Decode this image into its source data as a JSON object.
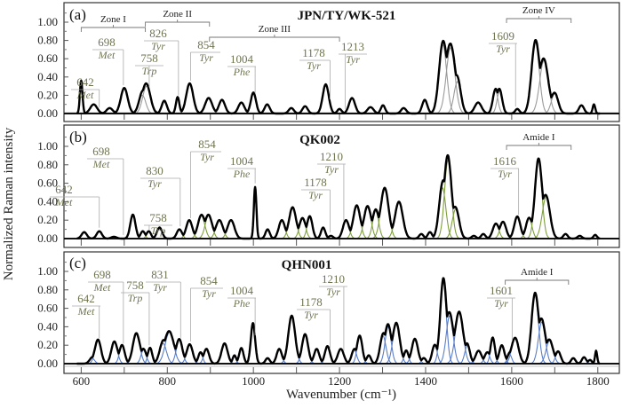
{
  "figure": {
    "xlabel": "Wavenumber (cm⁻¹)",
    "ylabel": "Normalized Raman intensity"
  },
  "chart_data": [
    {
      "type": "line",
      "panel": "(a)",
      "title": "JPN/TY/WK-521",
      "xlim": [
        560,
        1850
      ],
      "ylim": [
        0,
        1.1
      ],
      "xticks": [
        600,
        800,
        1000,
        1200,
        1400,
        1600,
        1800
      ],
      "yticks": [
        "0.00",
        "0.20",
        "0.40",
        "0.60",
        "0.80",
        "1.00"
      ],
      "component_color": "#9a9a9a",
      "peaks": [
        [
          600,
          0.36,
          3
        ],
        [
          629,
          0.1,
          8
        ],
        [
          666,
          0.06,
          7
        ],
        [
          700,
          0.28,
          8
        ],
        [
          742,
          0.2,
          8
        ],
        [
          752,
          0.3,
          9
        ],
        [
          793,
          0.14,
          6
        ],
        [
          824,
          0.18,
          4
        ],
        [
          852,
          0.33,
          8
        ],
        [
          896,
          0.17,
          8
        ],
        [
          927,
          0.15,
          7
        ],
        [
          972,
          0.12,
          7
        ],
        [
          1000,
          0.23,
          6
        ],
        [
          1032,
          0.1,
          6
        ],
        [
          1088,
          0.06,
          6
        ],
        [
          1120,
          0.08,
          6
        ],
        [
          1168,
          0.32,
          7
        ],
        [
          1200,
          0.05,
          5
        ],
        [
          1229,
          0.17,
          7
        ],
        [
          1272,
          0.07,
          7
        ],
        [
          1301,
          0.09,
          5
        ],
        [
          1349,
          0.06,
          6
        ],
        [
          1398,
          0.15,
          6
        ],
        [
          1440,
          0.75,
          9
        ],
        [
          1458,
          0.72,
          10
        ],
        [
          1474,
          0.35,
          8
        ],
        [
          1522,
          0.12,
          8
        ],
        [
          1562,
          0.25,
          6
        ],
        [
          1572,
          0.25,
          6
        ],
        [
          1613,
          0.05,
          5
        ],
        [
          1655,
          0.78,
          9
        ],
        [
          1675,
          0.58,
          10
        ],
        [
          1700,
          0.22,
          8
        ],
        [
          1762,
          0.09,
          6
        ],
        [
          1791,
          0.1,
          3
        ]
      ],
      "annotations": [
        {
          "wn": 642,
          "label": "642",
          "residue": "Met"
        },
        {
          "wn": 698,
          "label": "698",
          "residue": "Met"
        },
        {
          "wn": 758,
          "label": "758",
          "residue": "Trp"
        },
        {
          "wn": 826,
          "label": "826",
          "residue": "Tyr"
        },
        {
          "wn": 854,
          "label": "854",
          "residue": "Tyr"
        },
        {
          "wn": 1004,
          "label": "1004",
          "residue": "Phe"
        },
        {
          "wn": 1178,
          "label": "1178",
          "residue": "Tyr"
        },
        {
          "wn": 1213,
          "label": "1213",
          "residue": "Tyr"
        },
        {
          "wn": 1609,
          "label": "1609",
          "residue": "Tyr"
        }
      ],
      "zones": [
        {
          "label": "Zone I",
          "range": [
            600,
            749
          ]
        },
        {
          "label": "Zone II",
          "range": [
            749,
            898
          ]
        },
        {
          "label": "Zone III",
          "range": [
            898,
            1200
          ]
        },
        {
          "label": "Zone IV",
          "range": [
            1588,
            1738
          ]
        }
      ]
    },
    {
      "type": "line",
      "panel": "(b)",
      "title": "QK002",
      "xlim": [
        560,
        1850
      ],
      "ylim": [
        0,
        1.1
      ],
      "xticks": [
        600,
        800,
        1000,
        1200,
        1400,
        1600,
        1800
      ],
      "yticks": [
        "0.00",
        "0.20",
        "0.40",
        "0.60",
        "0.80",
        "1.00"
      ],
      "component_color": "#7f9f3c",
      "peaks": [
        [
          607,
          0.07,
          6
        ],
        [
          642,
          0.08,
          6
        ],
        [
          676,
          0.02,
          6
        ],
        [
          720,
          0.26,
          6
        ],
        [
          743,
          0.08,
          5
        ],
        [
          757,
          0.08,
          5
        ],
        [
          782,
          0.12,
          6
        ],
        [
          828,
          0.1,
          6
        ],
        [
          851,
          0.2,
          7
        ],
        [
          879,
          0.25,
          8
        ],
        [
          896,
          0.25,
          8
        ],
        [
          921,
          0.2,
          8
        ],
        [
          948,
          0.2,
          8
        ],
        [
          1004,
          0.56,
          3
        ],
        [
          1033,
          0.1,
          5
        ],
        [
          1066,
          0.2,
          7
        ],
        [
          1091,
          0.34,
          8
        ],
        [
          1114,
          0.22,
          7
        ],
        [
          1131,
          0.24,
          6
        ],
        [
          1162,
          0.12,
          5
        ],
        [
          1180,
          0.03,
          5
        ],
        [
          1215,
          0.2,
          7
        ],
        [
          1240,
          0.36,
          8
        ],
        [
          1265,
          0.35,
          8
        ],
        [
          1284,
          0.3,
          7
        ],
        [
          1305,
          0.55,
          9
        ],
        [
          1338,
          0.4,
          9
        ],
        [
          1390,
          0.05,
          5
        ],
        [
          1410,
          0.07,
          5
        ],
        [
          1439,
          0.55,
          8
        ],
        [
          1452,
          0.85,
          8
        ],
        [
          1470,
          0.32,
          8
        ],
        [
          1512,
          0.03,
          5
        ],
        [
          1534,
          0.05,
          5
        ],
        [
          1563,
          0.16,
          7
        ],
        [
          1580,
          0.18,
          7
        ],
        [
          1613,
          0.24,
          7
        ],
        [
          1640,
          0.22,
          7
        ],
        [
          1662,
          0.85,
          8
        ],
        [
          1680,
          0.45,
          9
        ],
        [
          1725,
          0.05,
          5
        ],
        [
          1758,
          0.03,
          5
        ],
        [
          1794,
          0.04,
          4
        ]
      ],
      "annotations": [
        {
          "wn": 642,
          "label": "642",
          "residue": "Met"
        },
        {
          "wn": 698,
          "label": "698",
          "residue": "Met"
        },
        {
          "wn": 830,
          "label": "830",
          "residue": "Tyr"
        },
        {
          "wn": 758,
          "label": "758",
          "residue": "Trp"
        },
        {
          "wn": 854,
          "label": "854",
          "residue": "Tyr"
        },
        {
          "wn": 1004,
          "label": "1004",
          "residue": "Phe"
        },
        {
          "wn": 1210,
          "label": "1210",
          "residue": "Tyr"
        },
        {
          "wn": 1178,
          "label": "1178",
          "residue": "Tyr"
        },
        {
          "wn": 1616,
          "label": "1616",
          "residue": "Tyr"
        }
      ],
      "zones": [
        {
          "label": "Amide I",
          "range": [
            1588,
            1738
          ]
        }
      ]
    },
    {
      "type": "line",
      "panel": "(c)",
      "title": "QHN001",
      "xlim": [
        560,
        1850
      ],
      "ylim": [
        0,
        1.1
      ],
      "xticks": [
        600,
        800,
        1000,
        1200,
        1400,
        1600,
        1800
      ],
      "yticks": [
        "0.00",
        "0.20",
        "0.40",
        "0.60",
        "0.80",
        "1.00"
      ],
      "component_color": "#5a7ec8",
      "peaks": [
        [
          625,
          0.06,
          6
        ],
        [
          639,
          0.26,
          7
        ],
        [
          677,
          0.24,
          7
        ],
        [
          695,
          0.2,
          6
        ],
        [
          728,
          0.33,
          8
        ],
        [
          745,
          0.15,
          6
        ],
        [
          760,
          0.17,
          5
        ],
        [
          790,
          0.22,
          8
        ],
        [
          805,
          0.34,
          10
        ],
        [
          828,
          0.26,
          7
        ],
        [
          852,
          0.21,
          7
        ],
        [
          877,
          0.12,
          5
        ],
        [
          891,
          0.16,
          6
        ],
        [
          933,
          0.22,
          7
        ],
        [
          956,
          0.09,
          4
        ],
        [
          972,
          0.17,
          5
        ],
        [
          999,
          0.44,
          5
        ],
        [
          1033,
          0.06,
          5
        ],
        [
          1060,
          0.16,
          6
        ],
        [
          1089,
          0.52,
          8
        ],
        [
          1120,
          0.32,
          7
        ],
        [
          1147,
          0.16,
          6
        ],
        [
          1172,
          0.19,
          6
        ],
        [
          1203,
          0.16,
          7
        ],
        [
          1234,
          0.15,
          6
        ],
        [
          1247,
          0.3,
          6
        ],
        [
          1268,
          0.09,
          5
        ],
        [
          1301,
          0.3,
          7
        ],
        [
          1313,
          0.4,
          7
        ],
        [
          1332,
          0.44,
          8
        ],
        [
          1355,
          0.14,
          5
        ],
        [
          1375,
          0.27,
          7
        ],
        [
          1396,
          0.06,
          5
        ],
        [
          1421,
          0.2,
          6
        ],
        [
          1441,
          0.9,
          7
        ],
        [
          1456,
          0.52,
          8
        ],
        [
          1478,
          0.56,
          9
        ],
        [
          1497,
          0.2,
          6
        ],
        [
          1523,
          0.14,
          7
        ],
        [
          1543,
          0.12,
          6
        ],
        [
          1556,
          0.28,
          5
        ],
        [
          1577,
          0.2,
          6
        ],
        [
          1595,
          0.1,
          5
        ],
        [
          1608,
          0.28,
          8
        ],
        [
          1654,
          0.75,
          8
        ],
        [
          1670,
          0.45,
          8
        ],
        [
          1688,
          0.25,
          8
        ],
        [
          1708,
          0.13,
          6
        ],
        [
          1743,
          0.06,
          5
        ],
        [
          1768,
          0.07,
          5
        ],
        [
          1782,
          0.04,
          4
        ],
        [
          1796,
          0.14,
          2.5
        ]
      ],
      "annotations": [
        {
          "wn": 642,
          "label": "642",
          "residue": "Met"
        },
        {
          "wn": 698,
          "label": "698",
          "residue": "Met"
        },
        {
          "wn": 758,
          "label": "758",
          "residue": "Trp"
        },
        {
          "wn": 831,
          "label": "831",
          "residue": "Tyr"
        },
        {
          "wn": 854,
          "label": "854",
          "residue": "Tyr"
        },
        {
          "wn": 1004,
          "label": "1004",
          "residue": "Phe"
        },
        {
          "wn": 1178,
          "label": "1178",
          "residue": "Tyr"
        },
        {
          "wn": 1210,
          "label": "1210",
          "residue": "Tyr"
        },
        {
          "wn": 1601,
          "label": "1601",
          "residue": "Tyr"
        }
      ],
      "zones": [
        {
          "label": "Amide I",
          "range": [
            1585,
            1732
          ]
        }
      ]
    }
  ]
}
